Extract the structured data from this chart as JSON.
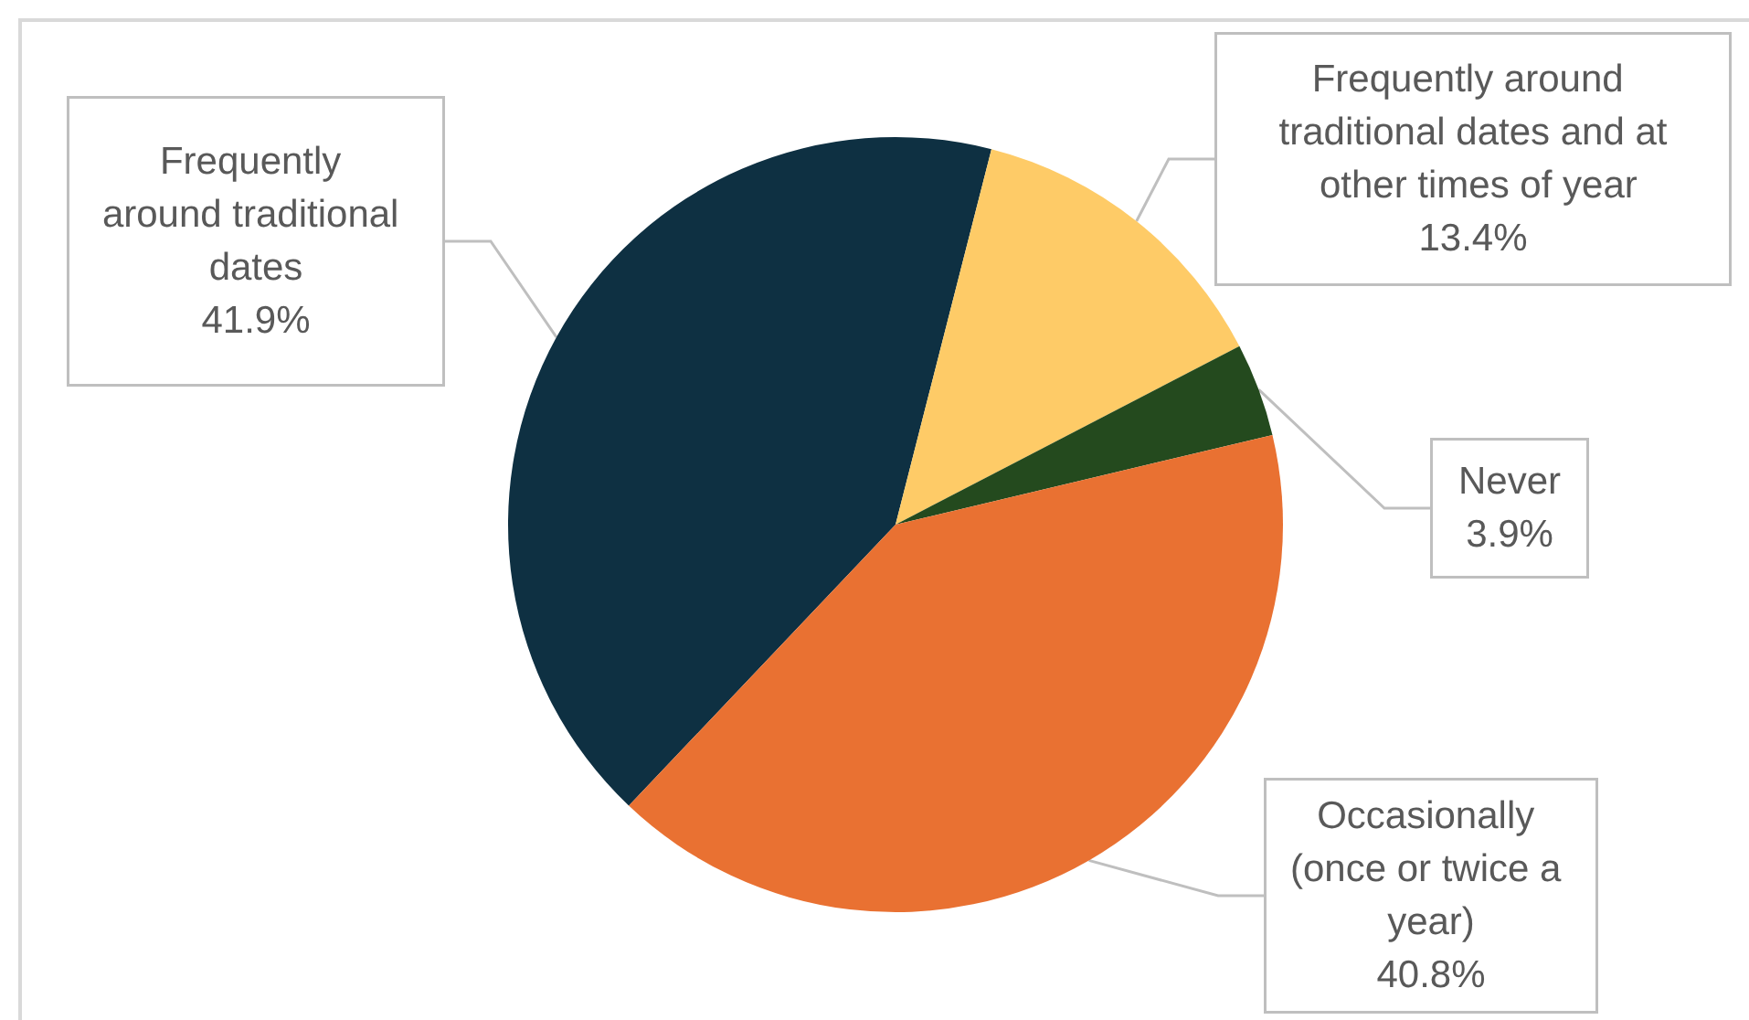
{
  "chart_data": {
    "type": "pie",
    "categories": [
      "Frequently around traditional dates",
      "Frequently around traditional dates and at other times of year",
      "Never",
      "Occasionally (once or twice a year)"
    ],
    "values": [
      41.9,
      13.4,
      3.9,
      40.8
    ],
    "value_labels": [
      "41.9%",
      "13.4%",
      "3.9%",
      "40.8%"
    ],
    "colors": [
      "#0e3042",
      "#fecb67",
      "#244a1e",
      "#e97132"
    ]
  }
}
